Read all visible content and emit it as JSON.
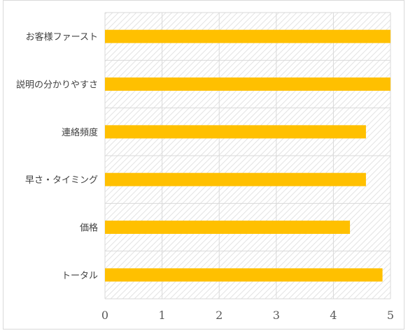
{
  "chart_data": {
    "type": "bar",
    "orientation": "horizontal",
    "categories": [
      "お客様ファースト",
      "説明の分かりやすさ",
      "連絡頻度",
      "早さ・タイミング",
      "価格",
      "トータル"
    ],
    "values": [
      5.0,
      5.0,
      4.57,
      4.57,
      4.29,
      4.86
    ],
    "xlim": [
      0,
      5
    ],
    "xticks": [
      "0",
      "1",
      "2",
      "3",
      "4",
      "5"
    ],
    "title": "",
    "xlabel": "",
    "ylabel": "",
    "grid": true,
    "plot_background": "hatched",
    "legend": "none",
    "colors": {
      "bar": "#FFC000",
      "grid": "#d9d9d9",
      "hatch": "#e3e3e3"
    }
  }
}
